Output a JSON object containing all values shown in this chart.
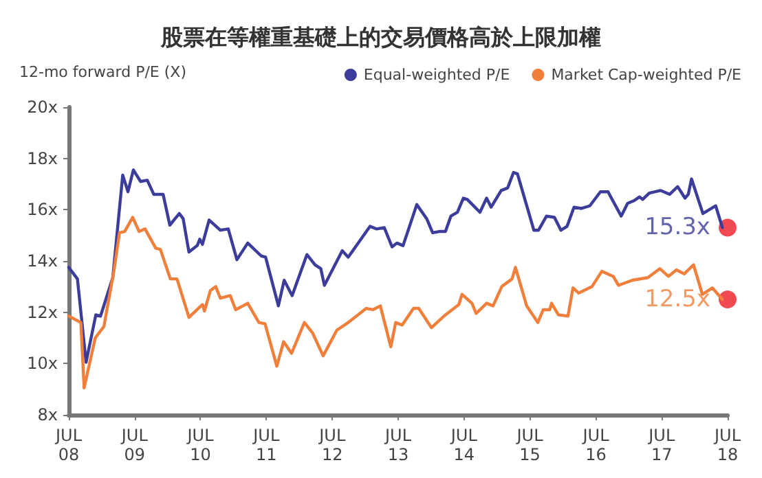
{
  "chart_data": {
    "type": "line",
    "title": "股票在等權重基礎上的交易價格高於上限加權",
    "ylabel": "12-mo forward P/E (X)",
    "series": [
      {
        "name": "Equal-weighted P/E",
        "color": "#3c3c9a",
        "x": [
          "2008-07-01",
          "2008-08-18",
          "2008-10-05",
          "2008-11-28",
          "2008-12-24",
          "2009-03-02",
          "2009-04-26",
          "2009-05-25",
          "2009-06-24",
          "2009-08-03",
          "2009-09-09",
          "2009-10-15",
          "2009-12-06",
          "2010-01-12",
          "2010-03-06",
          "2010-03-27",
          "2010-04-28",
          "2010-06-13",
          "2010-06-27",
          "2010-07-12",
          "2010-08-18",
          "2010-10-19",
          "2010-12-02",
          "2011-01-19",
          "2011-03-20",
          "2011-06-02",
          "2011-06-27",
          "2011-09-06",
          "2011-10-08",
          "2011-11-21",
          "2012-02-11",
          "2012-03-27",
          "2012-04-28",
          "2012-05-18",
          "2012-08-25",
          "2012-09-27",
          "2013-01-26",
          "2013-03-02",
          "2013-04-15",
          "2013-05-28",
          "2013-06-24",
          "2013-07-28",
          "2013-10-12",
          "2013-12-06",
          "2014-01-08",
          "2014-02-14",
          "2014-03-20",
          "2014-04-19",
          "2014-05-25",
          "2014-06-27",
          "2014-07-19",
          "2014-09-27",
          "2014-11-03",
          "2014-11-28",
          "2015-01-23",
          "2015-02-28",
          "2015-04-01",
          "2015-04-23",
          "2015-07-23",
          "2015-08-18",
          "2015-10-01",
          "2015-11-14",
          "2015-12-20",
          "2016-01-23",
          "2016-03-02",
          "2016-04-12",
          "2016-05-28",
          "2016-07-26",
          "2016-09-06",
          "2016-11-18",
          "2016-12-24",
          "2017-01-28",
          "2017-02-28",
          "2017-03-17",
          "2017-04-23",
          "2017-06-24",
          "2017-08-14",
          "2017-09-27",
          "2017-11-07",
          "2017-11-25",
          "2017-12-13",
          "2018-02-14",
          "2018-04-26",
          "2018-06-02"
        ],
        "values": [
          13.75,
          13.3,
          10.05,
          11.9,
          11.85,
          13.35,
          17.35,
          16.7,
          17.55,
          17.1,
          17.15,
          16.6,
          16.6,
          15.4,
          15.85,
          15.65,
          14.35,
          14.6,
          14.85,
          14.65,
          15.6,
          15.2,
          15.25,
          14.05,
          14.7,
          14.2,
          14.15,
          12.25,
          13.25,
          12.65,
          14.25,
          13.85,
          13.7,
          13.05,
          14.4,
          14.15,
          15.35,
          15.25,
          15.3,
          14.55,
          14.7,
          14.6,
          16.2,
          15.65,
          15.1,
          15.15,
          15.15,
          15.75,
          15.9,
          16.45,
          16.4,
          15.9,
          16.45,
          16.1,
          16.75,
          16.85,
          17.45,
          17.4,
          15.2,
          15.2,
          15.75,
          15.7,
          15.2,
          15.35,
          16.1,
          16.05,
          16.15,
          16.7,
          16.7,
          15.75,
          16.25,
          16.35,
          16.5,
          16.4,
          16.65,
          16.75,
          16.6,
          16.9,
          16.45,
          16.6,
          17.2,
          15.85,
          16.15,
          15.3
        ]
      },
      {
        "name": "Market Cap-weighted P/E",
        "color": "#f07f3c",
        "x": [
          "2008-07-01",
          "2008-09-06",
          "2008-09-24",
          "2008-11-25",
          "2009-01-12",
          "2009-03-09",
          "2009-04-08",
          "2009-05-07",
          "2009-06-20",
          "2009-07-26",
          "2009-08-28",
          "2009-10-26",
          "2009-11-21",
          "2010-01-15",
          "2010-02-21",
          "2010-04-28",
          "2010-07-12",
          "2010-07-23",
          "2010-08-25",
          "2010-09-24",
          "2010-10-19",
          "2010-12-13",
          "2011-01-12",
          "2011-03-20",
          "2011-05-21",
          "2011-06-24",
          "2011-08-28",
          "2011-10-05",
          "2011-11-18",
          "2012-01-28",
          "2012-03-13",
          "2012-05-11",
          "2012-07-26",
          "2012-09-27",
          "2013-01-05",
          "2013-02-11",
          "2013-03-24",
          "2013-05-21",
          "2013-06-17",
          "2013-07-23",
          "2013-09-24",
          "2013-10-23",
          "2014-01-01",
          "2014-03-20",
          "2014-06-02",
          "2014-06-20",
          "2014-08-14",
          "2014-09-06",
          "2014-11-03",
          "2014-12-09",
          "2015-01-26",
          "2015-03-24",
          "2015-04-12",
          "2015-06-13",
          "2015-08-14",
          "2015-09-13",
          "2015-10-19",
          "2015-10-29",
          "2015-12-06",
          "2016-01-28",
          "2016-02-25",
          "2016-03-27",
          "2016-06-09",
          "2016-08-03",
          "2016-10-05",
          "2016-11-03",
          "2017-01-19",
          "2017-04-15",
          "2017-06-20",
          "2017-08-07",
          "2017-09-20",
          "2017-11-03",
          "2017-12-24",
          "2018-02-11",
          "2018-04-08",
          "2018-06-02"
        ],
        "values": [
          11.85,
          11.6,
          9.05,
          11.0,
          11.45,
          13.65,
          15.1,
          15.15,
          15.7,
          15.15,
          15.25,
          14.5,
          14.45,
          13.3,
          13.3,
          11.8,
          12.3,
          12.05,
          12.85,
          13.0,
          12.55,
          12.65,
          12.1,
          12.35,
          11.6,
          11.55,
          9.9,
          10.85,
          10.4,
          11.6,
          11.2,
          10.3,
          11.3,
          11.6,
          12.15,
          12.1,
          12.25,
          10.65,
          11.6,
          11.5,
          12.15,
          12.15,
          11.4,
          11.9,
          12.3,
          12.7,
          12.35,
          11.95,
          12.35,
          12.25,
          13.0,
          13.3,
          13.75,
          12.25,
          11.6,
          12.1,
          12.1,
          12.35,
          11.9,
          11.85,
          12.95,
          12.75,
          13.0,
          13.6,
          13.4,
          13.05,
          13.25,
          13.35,
          13.7,
          13.4,
          13.65,
          13.5,
          13.85,
          12.7,
          12.95,
          12.5
        ]
      }
    ],
    "xlim": [
      "2008-07-01",
      "2018-07-01"
    ],
    "xticks": [
      {
        "value": "2008-07-01",
        "label": "JUL\n08"
      },
      {
        "value": "2009-07-01",
        "label": "JUL\n09"
      },
      {
        "value": "2010-07-01",
        "label": "JUL\n10"
      },
      {
        "value": "2011-07-01",
        "label": "JUL\n11"
      },
      {
        "value": "2012-07-01",
        "label": "JUL\n12"
      },
      {
        "value": "2013-07-01",
        "label": "JUL\n13"
      },
      {
        "value": "2014-07-01",
        "label": "JUL\n14"
      },
      {
        "value": "2015-07-01",
        "label": "JUL\n15"
      },
      {
        "value": "2016-07-01",
        "label": "JUL\n16"
      },
      {
        "value": "2017-07-01",
        "label": "JUL\n17"
      },
      {
        "value": "2018-07-01",
        "label": "JUL\n18"
      }
    ],
    "ylim": [
      8,
      20
    ],
    "yticks": [
      {
        "value": 8,
        "label": "8x"
      },
      {
        "value": 10,
        "label": "10x"
      },
      {
        "value": 12,
        "label": "12x"
      },
      {
        "value": 14,
        "label": "14x"
      },
      {
        "value": 16,
        "label": "16x"
      },
      {
        "value": 18,
        "label": "18x"
      },
      {
        "value": 20,
        "label": "20x"
      }
    ],
    "annotations": [
      {
        "text": "15.3x",
        "x": "2018-07-01",
        "y": 15.3
      },
      {
        "text": "12.5x",
        "x": "2018-07-01",
        "y": 12.5
      }
    ],
    "grid": false,
    "legend": "top right",
    "marker": "none",
    "line_style": "solid"
  }
}
